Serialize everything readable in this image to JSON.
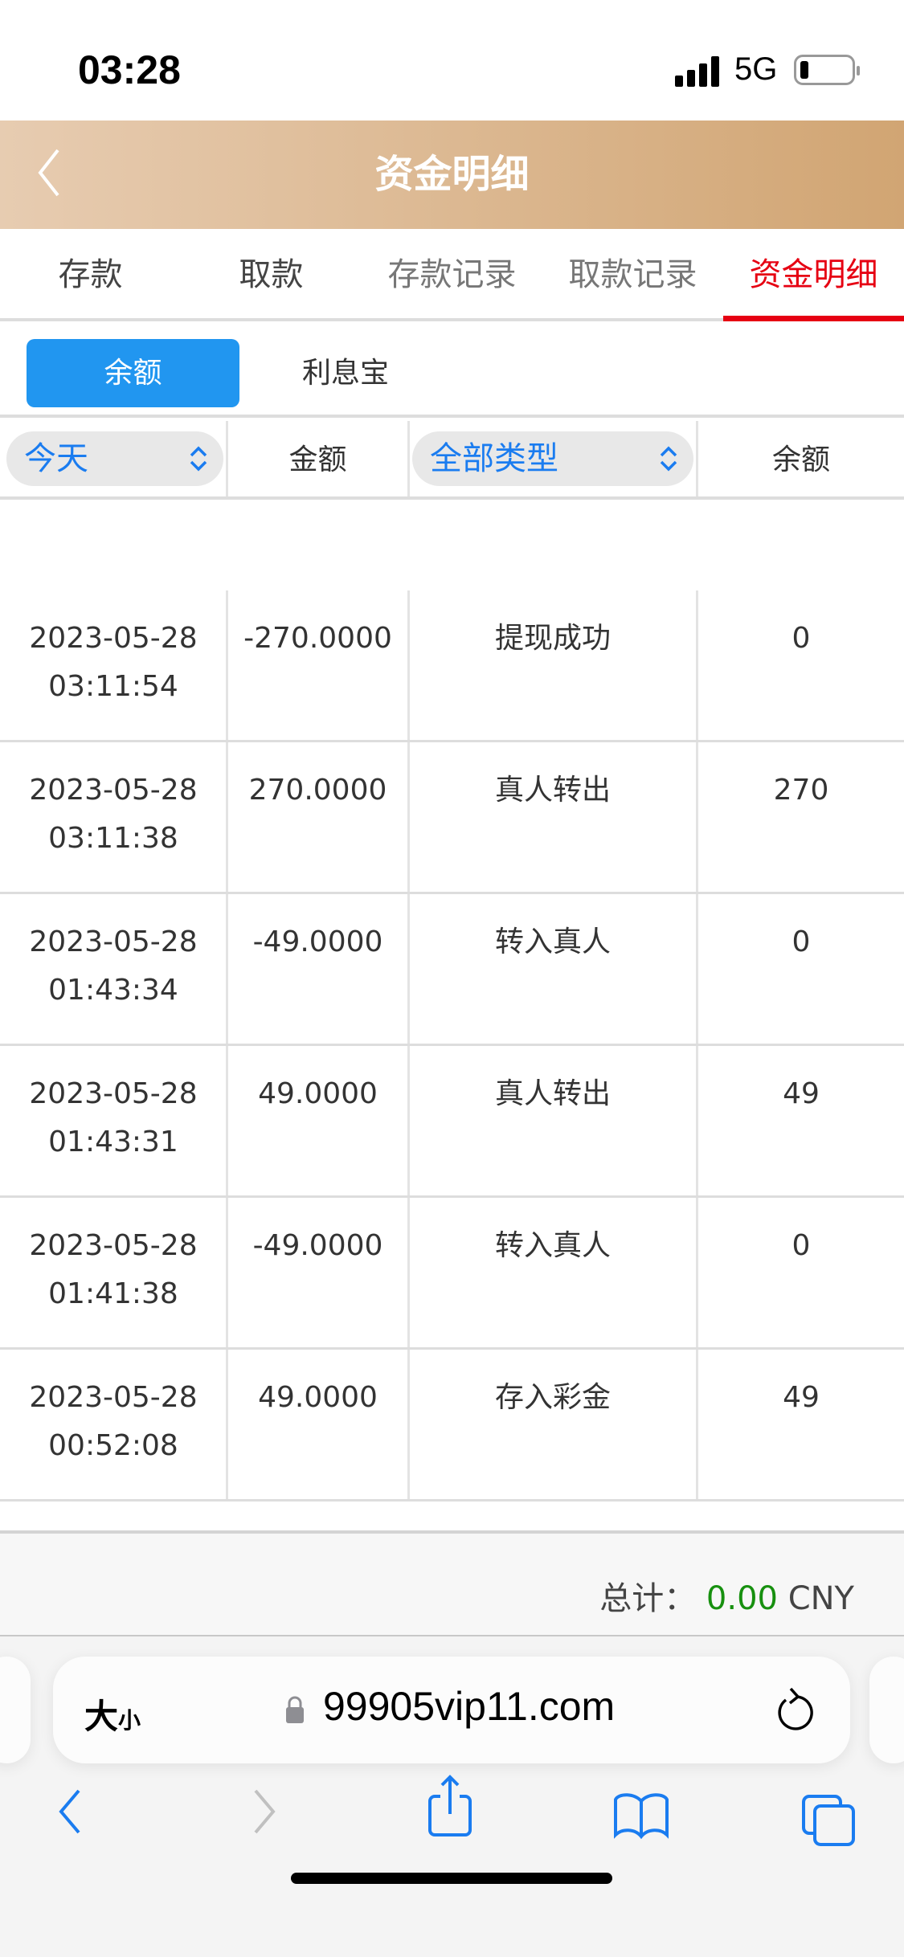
{
  "status_bar": {
    "time": "03:28",
    "network": "5G"
  },
  "header": {
    "title": "资金明细"
  },
  "tabs": [
    {
      "label": "存款"
    },
    {
      "label": "取款"
    },
    {
      "label": "存款记录"
    },
    {
      "label": "取款记录"
    },
    {
      "label": "资金明细",
      "active": true
    }
  ],
  "sub_tabs": [
    {
      "label": "余额",
      "active": true
    },
    {
      "label": "利息宝"
    }
  ],
  "table": {
    "date_filter": "今天",
    "amount_header": "金额",
    "type_filter": "全部类型",
    "balance_header": "余额",
    "rows": [
      {
        "date": "2023-05-28",
        "time": "03:11:54",
        "amount": "-270.0000",
        "type": "提现成功",
        "balance": "0"
      },
      {
        "date": "2023-05-28",
        "time": "03:11:38",
        "amount": "270.0000",
        "type": "真人转出",
        "balance": "270"
      },
      {
        "date": "2023-05-28",
        "time": "01:43:34",
        "amount": "-49.0000",
        "type": "转入真人",
        "balance": "0"
      },
      {
        "date": "2023-05-28",
        "time": "01:43:31",
        "amount": "49.0000",
        "type": "真人转出",
        "balance": "49"
      },
      {
        "date": "2023-05-28",
        "time": "01:41:38",
        "amount": "-49.0000",
        "type": "转入真人",
        "balance": "0"
      },
      {
        "date": "2023-05-28",
        "time": "00:52:08",
        "amount": "49.0000",
        "type": "存入彩金",
        "balance": "49"
      }
    ]
  },
  "footer": {
    "total_label": "总计：",
    "total_value": "0.00",
    "currency": "CNY"
  },
  "browser": {
    "text_size_big": "大",
    "text_size_small": "小",
    "url": "99905vip11.com"
  },
  "colors": {
    "accent_red": "#e60012",
    "accent_blue": "#2196f0",
    "total_green": "#17900f",
    "header_start": "#e7ccb1",
    "header_end": "#d1a573"
  }
}
